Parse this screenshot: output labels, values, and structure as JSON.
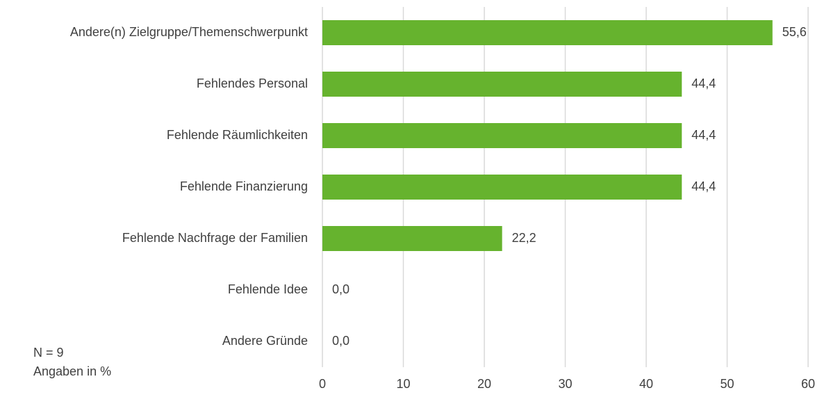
{
  "chart_data": {
    "type": "bar",
    "orientation": "horizontal",
    "categories": [
      "Andere(n) Zielgruppe/Themenschwerpunkt",
      "Fehlendes Personal",
      "Fehlende Räumlichkeiten",
      "Fehlende Finanzierung",
      "Fehlende Nachfrage der Familien",
      "Fehlende Idee",
      "Andere Gründe"
    ],
    "values": [
      55.6,
      44.4,
      44.4,
      44.4,
      22.2,
      0,
      0
    ],
    "value_labels": [
      "55,6",
      "44,4",
      "44,4",
      "44,4",
      "22,2",
      "0,0",
      "0,0"
    ],
    "color": "#66b32e",
    "xlim": [
      0,
      60
    ],
    "xticks": [
      0,
      10,
      20,
      30,
      40,
      50,
      60
    ],
    "grid": true,
    "annotations": [
      "N = 9",
      "Angaben in %"
    ]
  }
}
